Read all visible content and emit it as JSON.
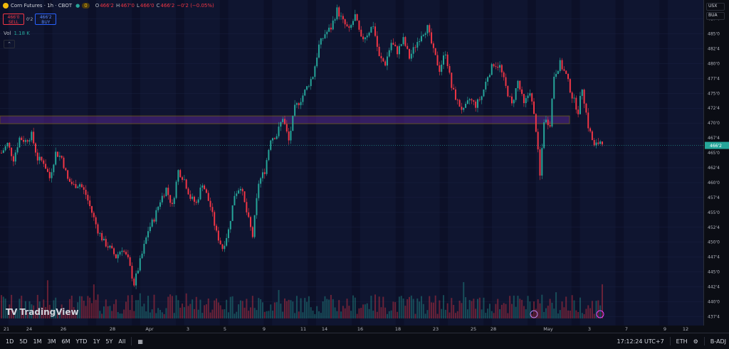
{
  "legend": {
    "title": "Corn Futures · 1h · CBOT",
    "badge_count": "0",
    "open_label": "O",
    "open_value": "466'2",
    "high_label": "H",
    "high_value": "467'0",
    "low_label": "L",
    "low_value": "466'0",
    "close_label": "C",
    "close_value": "466'2",
    "change": "−0'2 (−0.05%)"
  },
  "trade": {
    "sell_price": "466'0",
    "sell_label": "SELL",
    "spread": "0'2",
    "buy_price": "466'2",
    "buy_label": "BUY"
  },
  "volume_legend": {
    "label": "Vol",
    "value": "1.18 K"
  },
  "top_right": {
    "currency": "USX",
    "unit": "BUA"
  },
  "watermark": "TradingView",
  "bottom_toolbar": {
    "ranges": [
      "1D",
      "5D",
      "1M",
      "3M",
      "6M",
      "YTD",
      "1Y",
      "5Y",
      "All"
    ],
    "time": "17:12:24 UTC+7",
    "session": "ETH",
    "adjust": "B-ADJ"
  },
  "colors": {
    "up": "#26a69a",
    "down": "#f23645",
    "zone": "#f0b90b",
    "zone_fill": "#7b2fbf"
  },
  "chart_data": {
    "type": "candlestick",
    "title": "Corn Futures · 1h · CBOT",
    "y_ticks": [
      "487'4",
      "485'0",
      "482'4",
      "480'0",
      "477'4",
      "475'0",
      "472'4",
      "470'0",
      "467'4",
      "465'0",
      "462'4",
      "460'0",
      "457'4",
      "455'0",
      "452'4",
      "450'0",
      "447'4",
      "445'0",
      "442'4",
      "440'0",
      "437'4"
    ],
    "x_ticks": [
      "21",
      "24",
      "26",
      "28",
      "Apr",
      "3",
      "5",
      "9",
      "11",
      "14",
      "16",
      "18",
      "23",
      "25",
      "28",
      "May",
      "3",
      "7",
      "9",
      "12"
    ],
    "ylim": [
      436,
      489
    ],
    "current_price": "466'2",
    "resistance_zone": [
      469.9,
      471.2
    ],
    "price_path": [
      [
        0,
        465.0
      ],
      [
        3,
        466.5
      ],
      [
        6,
        464.0
      ],
      [
        9,
        467.5
      ],
      [
        12,
        467.0
      ],
      [
        15,
        468.0
      ],
      [
        18,
        464.0
      ],
      [
        21,
        463.5
      ],
      [
        24,
        460.8
      ],
      [
        27,
        465.0
      ],
      [
        30,
        464.2
      ],
      [
        33,
        460.5
      ],
      [
        36,
        459.5
      ],
      [
        39,
        459.8
      ],
      [
        42,
        458.0
      ],
      [
        45,
        455.0
      ],
      [
        48,
        452.0
      ],
      [
        51,
        450.0
      ],
      [
        54,
        449.0
      ],
      [
        57,
        447.5
      ],
      [
        60,
        449.0
      ],
      [
        63,
        447.0
      ],
      [
        66,
        443.0
      ],
      [
        70,
        448.0
      ],
      [
        73,
        452.0
      ],
      [
        76,
        454.0
      ],
      [
        79,
        457.0
      ],
      [
        82,
        459.0
      ],
      [
        85,
        456.0
      ],
      [
        88,
        462.0
      ],
      [
        91,
        460.5
      ],
      [
        94,
        457.5
      ],
      [
        97,
        456.5
      ],
      [
        100,
        460.0
      ],
      [
        104,
        456.0
      ],
      [
        107,
        451.5
      ],
      [
        110,
        449.0
      ],
      [
        113,
        452.0
      ],
      [
        116,
        458.0
      ],
      [
        119,
        459.5
      ],
      [
        122,
        455.0
      ],
      [
        125,
        451.0
      ],
      [
        128,
        460.0
      ],
      [
        131,
        462.0
      ],
      [
        134,
        467.5
      ],
      [
        137,
        468.0
      ],
      [
        140,
        471.0
      ],
      [
        143,
        467.0
      ],
      [
        146,
        472.5
      ],
      [
        149,
        474.0
      ],
      [
        152,
        476.0
      ],
      [
        155,
        478.0
      ],
      [
        158,
        483.0
      ],
      [
        161,
        485.0
      ],
      [
        164,
        486.0
      ],
      [
        167,
        489.0
      ],
      [
        170,
        487.0
      ],
      [
        173,
        485.5
      ],
      [
        176,
        488.0
      ],
      [
        179,
        484.0
      ],
      [
        182,
        485.0
      ],
      [
        185,
        486.5
      ],
      [
        188,
        481.0
      ],
      [
        191,
        480.0
      ],
      [
        194,
        483.5
      ],
      [
        197,
        482.0
      ],
      [
        200,
        484.0
      ],
      [
        203,
        481.0
      ],
      [
        206,
        483.0
      ],
      [
        209,
        485.0
      ],
      [
        212,
        486.0
      ],
      [
        215,
        482.0
      ],
      [
        218,
        479.0
      ],
      [
        221,
        482.0
      ],
      [
        224,
        476.0
      ],
      [
        227,
        473.5
      ],
      [
        230,
        472.0
      ],
      [
        233,
        474.0
      ],
      [
        236,
        473.0
      ],
      [
        239,
        474.5
      ],
      [
        242,
        478.0
      ],
      [
        245,
        480.0
      ],
      [
        248,
        479.5
      ],
      [
        251,
        476.0
      ],
      [
        254,
        473.0
      ],
      [
        257,
        477.0
      ],
      [
        260,
        473.0
      ],
      [
        263,
        475.5
      ],
      [
        266,
        469.0
      ],
      [
        268,
        461.0
      ],
      [
        270,
        470.5
      ],
      [
        273,
        470.0
      ],
      [
        275,
        478.0
      ],
      [
        278,
        480.0
      ],
      [
        281,
        478.0
      ],
      [
        284,
        474.5
      ],
      [
        287,
        472.0
      ],
      [
        289,
        476.0
      ],
      [
        292,
        469.5
      ],
      [
        295,
        466.0
      ],
      [
        298,
        467.0
      ]
    ],
    "n_candles": 300
  }
}
